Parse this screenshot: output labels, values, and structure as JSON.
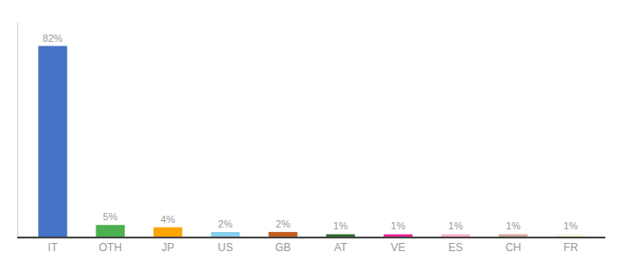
{
  "chart_data": {
    "type": "bar",
    "categories": [
      "IT",
      "OTH",
      "JP",
      "US",
      "GB",
      "AT",
      "VE",
      "ES",
      "CH",
      "FR"
    ],
    "values": [
      82,
      5,
      4,
      2,
      2,
      1,
      1,
      1,
      1,
      1
    ],
    "value_labels": [
      "82%",
      "5%",
      "4%",
      "2%",
      "2%",
      "1%",
      "1%",
      "1%",
      "1%",
      "1%"
    ],
    "colors": [
      "#4472C4",
      "#4CAF50",
      "#FFA500",
      "#87CEEB",
      "#C06020",
      "#2E6B2E",
      "#E91E8C",
      "#FFB0C8",
      "#D4A898",
      "#F5F5DC"
    ],
    "ylim": [
      0,
      92
    ],
    "yticks": [],
    "grid": false,
    "data_labels": true,
    "tick_labels": "x"
  }
}
